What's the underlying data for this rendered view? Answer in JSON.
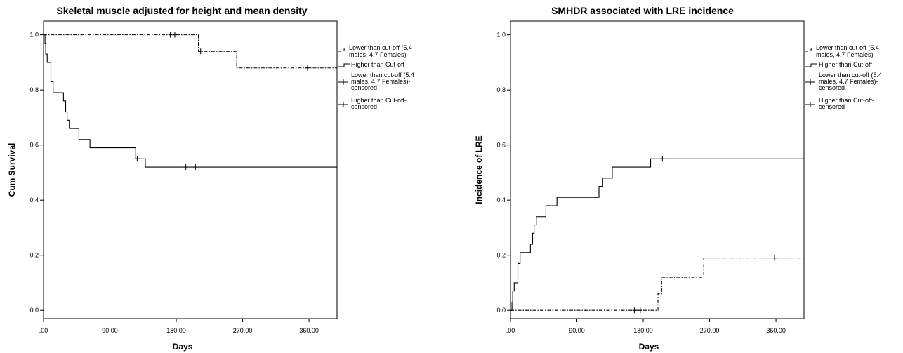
{
  "chart_data": [
    {
      "type": "line",
      "subtype": "kaplan-meier",
      "title": "Skeletal muscle adjusted for height and mean density",
      "xlabel": "Days",
      "ylabel": "Cum Survival",
      "xlim": [
        0,
        398
      ],
      "ylim": [
        -0.03,
        1.05
      ],
      "xticks": [
        0,
        90,
        180,
        270,
        360
      ],
      "xtick_labels": [
        ".00",
        "90.00",
        "180.00",
        "270.00",
        "360.00"
      ],
      "yticks": [
        0,
        0.2,
        0.4,
        0.6,
        0.8,
        1.0
      ],
      "ytick_labels": [
        "0.0",
        "0.2",
        "0.4",
        "0.6",
        "0.8",
        "1.0"
      ],
      "legend_position": "right",
      "legend": [
        "Lower than cut-off (5.4 males, 4.7 Females)",
        "Higher than Cut-off",
        "Lower than cut-off (5.4 males, 4.7 Females)-censored",
        "Higher than Cut-off-censored"
      ],
      "series": [
        {
          "name": "Lower than cut-off (5.4 males, 4.7 Females)",
          "style": "dash-dot",
          "steps": [
            [
              0,
              1.0
            ],
            [
              210,
              0.94
            ],
            [
              262,
              0.88
            ],
            [
              398,
              0.88
            ]
          ],
          "censored": [
            [
              172,
              1.0
            ],
            [
              178,
              1.0
            ],
            [
              213,
              0.94
            ],
            [
              358,
              0.88
            ]
          ]
        },
        {
          "name": "Higher than Cut-off",
          "style": "solid",
          "steps": [
            [
              0,
              1.0
            ],
            [
              2,
              0.97
            ],
            [
              3,
              0.93
            ],
            [
              5,
              0.9
            ],
            [
              10,
              0.83
            ],
            [
              13,
              0.79
            ],
            [
              27,
              0.76
            ],
            [
              30,
              0.72
            ],
            [
              32,
              0.69
            ],
            [
              35,
              0.66
            ],
            [
              48,
              0.62
            ],
            [
              63,
              0.59
            ],
            [
              125,
              0.55
            ],
            [
              138,
              0.52
            ],
            [
              398,
              0.52
            ]
          ],
          "censored": [
            [
              127,
              0.55
            ],
            [
              193,
              0.52
            ],
            [
              206,
              0.52
            ]
          ]
        }
      ]
    },
    {
      "type": "line",
      "subtype": "cumulative-incidence",
      "title": "SMHDR associated with LRE incidence",
      "xlabel": "Days",
      "ylabel": "Incidence of LRE",
      "xlim": [
        0,
        398
      ],
      "ylim": [
        -0.03,
        1.05
      ],
      "xticks": [
        0,
        90,
        180,
        270,
        360
      ],
      "xtick_labels": [
        ".00",
        "90.00",
        "180.00",
        "270.00",
        "360.00"
      ],
      "yticks": [
        0,
        0.2,
        0.4,
        0.6,
        0.8,
        1.0
      ],
      "ytick_labels": [
        "0.0",
        "0.2",
        "0.4",
        "0.6",
        "0.8",
        "1.0"
      ],
      "legend_position": "right",
      "legend": [
        "Lower than cut-off (5.4 males, 4.7 Females)",
        "Higher than Cut-off",
        "Lower than cut-off (5.4 males, 4.7 Females)-censored",
        "Higher than Cut-off-censored"
      ],
      "series": [
        {
          "name": "Lower than cut-off (5.4 males, 4.7 Females)",
          "style": "dash-dot",
          "steps": [
            [
              0,
              0.0
            ],
            [
              200,
              0.06
            ],
            [
              205,
              0.12
            ],
            [
              262,
              0.19
            ],
            [
              398,
              0.19
            ]
          ],
          "censored": [
            [
              168,
              0.0
            ],
            [
              176,
              0.0
            ],
            [
              358,
              0.19
            ]
          ]
        },
        {
          "name": "Higher than Cut-off",
          "style": "solid",
          "steps": [
            [
              0,
              0.0
            ],
            [
              2,
              0.03
            ],
            [
              3,
              0.07
            ],
            [
              5,
              0.1
            ],
            [
              10,
              0.17
            ],
            [
              13,
              0.21
            ],
            [
              27,
              0.24
            ],
            [
              30,
              0.28
            ],
            [
              32,
              0.31
            ],
            [
              35,
              0.34
            ],
            [
              48,
              0.38
            ],
            [
              63,
              0.41
            ],
            [
              120,
              0.45
            ],
            [
              125,
              0.48
            ],
            [
              138,
              0.52
            ],
            [
              190,
              0.55
            ],
            [
              398,
              0.55
            ]
          ],
          "censored": [
            [
              206,
              0.55
            ]
          ]
        }
      ]
    }
  ]
}
